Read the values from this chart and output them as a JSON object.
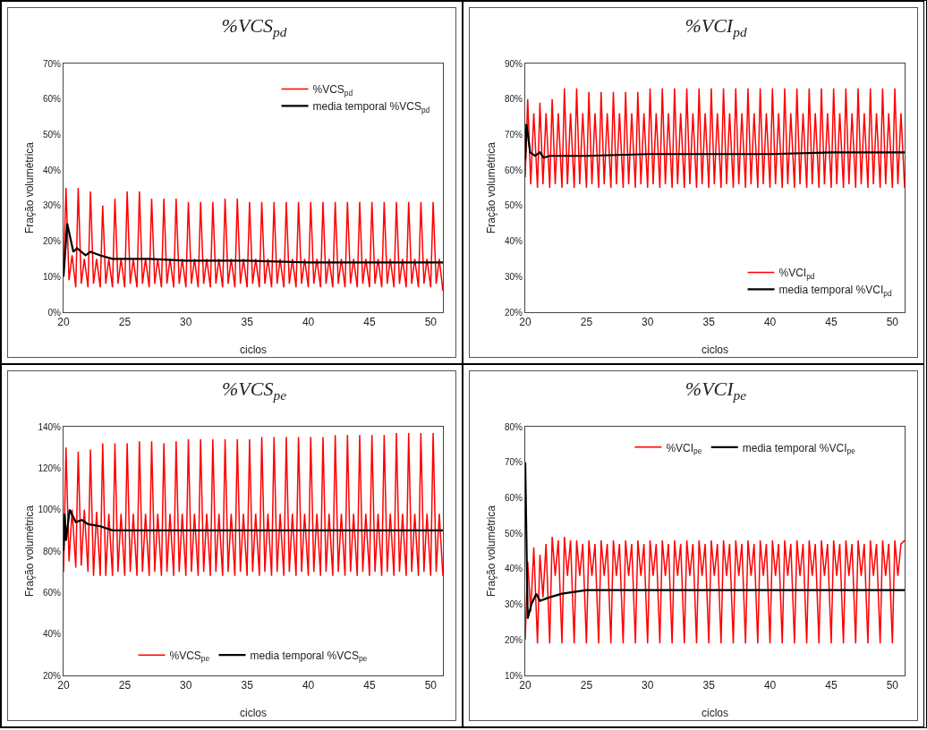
{
  "chart_data": [
    {
      "type": "line",
      "title": "%VCS$_{pd}$",
      "xlabel": "ciclos",
      "ylabel": "Fração volumétrica",
      "legend": "top right",
      "grid": false,
      "xlim": [
        20,
        51
      ],
      "xticks": [
        20,
        25,
        30,
        35,
        40,
        45,
        50
      ],
      "ylim": [
        0,
        70
      ],
      "yticks": [
        {
          "value": 0,
          "label": "0%"
        },
        {
          "value": 10,
          "label": "10%"
        },
        {
          "value": 20,
          "label": "20%"
        },
        {
          "value": 30,
          "label": "30%"
        },
        {
          "value": 40,
          "label": "40%"
        },
        {
          "value": 50,
          "label": "50%"
        },
        {
          "value": 60,
          "label": "60%"
        },
        {
          "value": 70,
          "label": "70%"
        }
      ],
      "series": [
        {
          "name": "%VCS$_{pd}$",
          "color": "#ff0000",
          "x": [
            20,
            20.2,
            20.45,
            20.7,
            21,
            21.2,
            21.45,
            21.7,
            22,
            22.2,
            22.45,
            22.7,
            23,
            23.2,
            23.45,
            23.7,
            24,
            24.2,
            24.45,
            24.7,
            25,
            25.2,
            25.45,
            25.7,
            26,
            26.2,
            26.45,
            26.7,
            27,
            27.2,
            27.45,
            27.7,
            28,
            28.2,
            28.45,
            28.7,
            29,
            29.2,
            29.45,
            29.7,
            30,
            30.2,
            30.45,
            30.7,
            31,
            31.2,
            31.45,
            31.7,
            32,
            32.2,
            32.45,
            32.7,
            33,
            33.2,
            33.45,
            33.7,
            34,
            34.2,
            34.45,
            34.7,
            35,
            35.2,
            35.45,
            35.7,
            36,
            36.2,
            36.45,
            36.7,
            37,
            37.2,
            37.45,
            37.7,
            38,
            38.2,
            38.45,
            38.7,
            39,
            39.2,
            39.45,
            39.7,
            40,
            40.2,
            40.45,
            40.7,
            41,
            41.2,
            41.45,
            41.7,
            42,
            42.2,
            42.45,
            42.7,
            43,
            43.2,
            43.45,
            43.7,
            44,
            44.2,
            44.45,
            44.7,
            45,
            45.2,
            45.45,
            45.7,
            46,
            46.2,
            46.45,
            46.7,
            47,
            47.2,
            47.45,
            47.7,
            48,
            48.2,
            48.45,
            48.7,
            49,
            49.2,
            49.45,
            49.7,
            50,
            50.2,
            50.45,
            50.7,
            51
          ],
          "values": [
            10,
            35,
            9,
            16,
            7,
            35,
            8,
            15,
            7,
            34,
            8,
            15,
            7,
            30,
            8,
            15,
            7,
            32,
            8,
            15,
            7,
            34,
            8,
            15,
            7,
            34,
            8,
            15,
            7,
            32,
            8,
            15,
            7,
            32,
            8,
            15,
            7,
            32,
            8,
            15,
            7,
            31,
            8,
            15,
            7,
            31,
            8,
            15,
            7,
            31,
            8,
            15,
            7,
            32,
            8,
            15,
            7,
            32,
            8,
            15,
            7,
            31,
            8,
            15,
            7,
            31,
            8,
            15,
            7,
            31,
            8,
            15,
            7,
            31,
            8,
            15,
            7,
            31,
            8,
            15,
            7,
            31,
            8,
            15,
            7,
            31,
            8,
            15,
            7,
            31,
            8,
            15,
            7,
            31,
            8,
            15,
            7,
            31,
            8,
            15,
            7,
            31,
            8,
            15,
            7,
            31,
            8,
            15,
            7,
            31,
            8,
            15,
            7,
            31,
            8,
            15,
            7,
            31,
            8,
            15,
            7,
            31,
            8,
            15,
            6
          ]
        },
        {
          "name": "media temporal %VCS$_{pd}$",
          "color": "#000000",
          "x": [
            20,
            20.3,
            20.8,
            21.1,
            21.8,
            22.2,
            23,
            24,
            25,
            27,
            30,
            35,
            40,
            45,
            51
          ],
          "values": [
            10,
            25,
            17,
            18,
            16,
            17,
            16,
            15,
            15,
            15,
            14.5,
            14.5,
            14,
            14,
            14
          ]
        }
      ]
    },
    {
      "type": "line",
      "title": "%VCI$_{pd}$",
      "xlabel": "ciclos",
      "ylabel": "Fração volumétrica",
      "legend": "bottom right",
      "grid": false,
      "xlim": [
        20,
        51
      ],
      "xticks": [
        20,
        25,
        30,
        35,
        40,
        45,
        50
      ],
      "ylim": [
        20,
        90
      ],
      "yticks": [
        {
          "value": 20,
          "label": "20%"
        },
        {
          "value": 30,
          "label": "30%"
        },
        {
          "value": 40,
          "label": "40%"
        },
        {
          "value": 50,
          "label": "50%"
        },
        {
          "value": 60,
          "label": "60%"
        },
        {
          "value": 70,
          "label": "70%"
        },
        {
          "value": 80,
          "label": "80%"
        },
        {
          "value": 90,
          "label": "90%"
        }
      ],
      "series": [
        {
          "name": "%VCI$_{pd}$",
          "color": "#ff0000",
          "x": [
            20,
            20.2,
            20.45,
            20.7,
            21,
            21.2,
            21.45,
            21.7,
            22,
            22.2,
            22.45,
            22.7,
            23,
            23.2,
            23.45,
            23.7,
            24,
            24.2,
            24.45,
            24.7,
            25,
            25.2,
            25.45,
            25.7,
            26,
            26.2,
            26.45,
            26.7,
            27,
            27.2,
            27.45,
            27.7,
            28,
            28.2,
            28.45,
            28.7,
            29,
            29.2,
            29.45,
            29.7,
            30,
            30.2,
            30.45,
            30.7,
            31,
            31.2,
            31.45,
            31.7,
            32,
            32.2,
            32.45,
            32.7,
            33,
            33.2,
            33.45,
            33.7,
            34,
            34.2,
            34.45,
            34.7,
            35,
            35.2,
            35.45,
            35.7,
            36,
            36.2,
            36.45,
            36.7,
            37,
            37.2,
            37.45,
            37.7,
            38,
            38.2,
            38.45,
            38.7,
            39,
            39.2,
            39.45,
            39.7,
            40,
            40.2,
            40.45,
            40.7,
            41,
            41.2,
            41.45,
            41.7,
            42,
            42.2,
            42.45,
            42.7,
            43,
            43.2,
            43.45,
            43.7,
            44,
            44.2,
            44.45,
            44.7,
            45,
            45.2,
            45.45,
            45.7,
            46,
            46.2,
            46.45,
            46.7,
            47,
            47.2,
            47.45,
            47.7,
            48,
            48.2,
            48.45,
            48.7,
            49,
            49.2,
            49.45,
            49.7,
            50,
            50.2,
            50.45,
            50.7,
            51
          ],
          "values": [
            58,
            80,
            56,
            76,
            55,
            79,
            56,
            76,
            55,
            80,
            56,
            76,
            55,
            83,
            56,
            76,
            55,
            83,
            56,
            76,
            55,
            82,
            56,
            76,
            55,
            82,
            56,
            76,
            55,
            82,
            56,
            76,
            55,
            82,
            56,
            76,
            55,
            82,
            56,
            76,
            55,
            83,
            56,
            76,
            55,
            83,
            56,
            76,
            55,
            83,
            56,
            76,
            55,
            83,
            56,
            76,
            55,
            83,
            56,
            76,
            55,
            83,
            56,
            76,
            55,
            83,
            56,
            76,
            55,
            83,
            56,
            76,
            55,
            83,
            56,
            76,
            55,
            83,
            56,
            76,
            55,
            83,
            56,
            76,
            55,
            83,
            56,
            76,
            55,
            83,
            56,
            76,
            55,
            83,
            56,
            76,
            55,
            83,
            56,
            76,
            55,
            83,
            56,
            76,
            55,
            83,
            56,
            76,
            55,
            83,
            56,
            76,
            55,
            83,
            56,
            76,
            55,
            83,
            56,
            76,
            55,
            83,
            56,
            76,
            55
          ]
        },
        {
          "name": "media temporal %VCI$_{pd}$",
          "color": "#000000",
          "x": [
            20,
            20.1,
            20.4,
            20.8,
            21.2,
            21.5,
            22,
            25,
            30,
            35,
            40,
            45,
            51
          ],
          "values": [
            63,
            73,
            65,
            64,
            65,
            63.5,
            64,
            64,
            64.5,
            64.5,
            64.5,
            65,
            65
          ]
        }
      ]
    },
    {
      "type": "line",
      "title": "%VCS$_{pe}$",
      "xlabel": "ciclos",
      "ylabel": "Fração volumétrica",
      "legend": "bottom",
      "grid": false,
      "xlim": [
        20,
        51
      ],
      "xticks": [
        20,
        25,
        30,
        35,
        40,
        45,
        50
      ],
      "ylim": [
        20,
        140
      ],
      "yticks": [
        {
          "value": 20,
          "label": "20%"
        },
        {
          "value": 40,
          "label": "40%"
        },
        {
          "value": 60,
          "label": "60%"
        },
        {
          "value": 80,
          "label": "80%"
        },
        {
          "value": 100,
          "label": "100%"
        },
        {
          "value": 120,
          "label": "120%"
        },
        {
          "value": 140,
          "label": "140%"
        }
      ],
      "series": [
        {
          "name": "%VCS$_{pe}$",
          "color": "#ff0000",
          "x": [
            20,
            20.2,
            20.45,
            20.7,
            21,
            21.2,
            21.45,
            21.7,
            22,
            22.2,
            22.45,
            22.7,
            23,
            23.2,
            23.45,
            23.7,
            24,
            24.2,
            24.45,
            24.7,
            25,
            25.2,
            25.45,
            25.7,
            26,
            26.2,
            26.45,
            26.7,
            27,
            27.2,
            27.45,
            27.7,
            28,
            28.2,
            28.45,
            28.7,
            29,
            29.2,
            29.45,
            29.7,
            30,
            30.2,
            30.45,
            30.7,
            31,
            31.2,
            31.45,
            31.7,
            32,
            32.2,
            32.45,
            32.7,
            33,
            33.2,
            33.45,
            33.7,
            34,
            34.2,
            34.45,
            34.7,
            35,
            35.2,
            35.45,
            35.7,
            36,
            36.2,
            36.45,
            36.7,
            37,
            37.2,
            37.45,
            37.7,
            38,
            38.2,
            38.45,
            38.7,
            39,
            39.2,
            39.45,
            39.7,
            40,
            40.2,
            40.45,
            40.7,
            41,
            41.2,
            41.45,
            41.7,
            42,
            42.2,
            42.45,
            42.7,
            43,
            43.2,
            43.45,
            43.7,
            44,
            44.2,
            44.45,
            44.7,
            45,
            45.2,
            45.45,
            45.7,
            46,
            46.2,
            46.45,
            46.7,
            47,
            47.2,
            47.45,
            47.7,
            48,
            48.2,
            48.45,
            48.7,
            49,
            49.2,
            49.45,
            49.7,
            50,
            50.2,
            50.45,
            50.7,
            51
          ],
          "values": [
            70,
            130,
            75,
            100,
            72,
            128,
            73,
            100,
            70,
            129,
            68,
            99,
            68,
            132,
            68,
            98,
            68,
            132,
            70,
            98,
            68,
            132,
            70,
            98,
            68,
            133,
            70,
            98,
            68,
            133,
            70,
            98,
            68,
            132,
            70,
            98,
            68,
            133,
            70,
            98,
            68,
            134,
            70,
            98,
            68,
            134,
            70,
            98,
            68,
            134,
            70,
            98,
            68,
            134,
            70,
            98,
            68,
            134,
            70,
            98,
            68,
            134,
            70,
            98,
            68,
            135,
            70,
            98,
            68,
            135,
            70,
            98,
            68,
            135,
            70,
            98,
            68,
            135,
            70,
            98,
            68,
            135,
            70,
            98,
            68,
            135,
            70,
            98,
            68,
            136,
            70,
            98,
            68,
            136,
            70,
            98,
            68,
            136,
            70,
            98,
            68,
            136,
            70,
            98,
            68,
            136,
            70,
            98,
            68,
            137,
            70,
            98,
            68,
            137,
            70,
            98,
            68,
            137,
            70,
            98,
            68,
            137,
            70,
            98,
            68
          ]
        },
        {
          "name": "media temporal %VCS$_{pe}$",
          "color": "#000000",
          "x": [
            20,
            20.1,
            20.2,
            20.5,
            21,
            21.5,
            22,
            23,
            24,
            25,
            30,
            35,
            40,
            45,
            51
          ],
          "values": [
            80,
            98,
            85,
            100,
            94,
            95,
            93,
            92,
            90,
            90,
            90,
            90,
            90,
            90,
            90
          ]
        }
      ]
    },
    {
      "type": "line",
      "title": "%VCI$_{pe}$",
      "xlabel": "ciclos",
      "ylabel": "Fração volumétrica",
      "legend": "top",
      "grid": false,
      "xlim": [
        20,
        51
      ],
      "xticks": [
        20,
        25,
        30,
        35,
        40,
        45,
        50
      ],
      "ylim": [
        10,
        80
      ],
      "yticks": [
        {
          "value": 10,
          "label": "10%"
        },
        {
          "value": 20,
          "label": "20%"
        },
        {
          "value": 30,
          "label": "30%"
        },
        {
          "value": 40,
          "label": "40%"
        },
        {
          "value": 50,
          "label": "50%"
        },
        {
          "value": 60,
          "label": "60%"
        },
        {
          "value": 70,
          "label": "70%"
        },
        {
          "value": 80,
          "label": "80%"
        }
      ],
      "series": [
        {
          "name": "%VCI$_{pe}$",
          "color": "#ff0000",
          "x": [
            20,
            20.2,
            20.45,
            20.7,
            21,
            21.2,
            21.45,
            21.7,
            22,
            22.2,
            22.45,
            22.7,
            23,
            23.2,
            23.45,
            23.7,
            24,
            24.2,
            24.45,
            24.7,
            25,
            25.2,
            25.45,
            25.7,
            26,
            26.2,
            26.45,
            26.7,
            27,
            27.2,
            27.45,
            27.7,
            28,
            28.2,
            28.45,
            28.7,
            29,
            29.2,
            29.45,
            29.7,
            30,
            30.2,
            30.45,
            30.7,
            31,
            31.2,
            31.45,
            31.7,
            32,
            32.2,
            32.45,
            32.7,
            33,
            33.2,
            33.45,
            33.7,
            34,
            34.2,
            34.45,
            34.7,
            35,
            35.2,
            35.45,
            35.7,
            36,
            36.2,
            36.45,
            36.7,
            37,
            37.2,
            37.45,
            37.7,
            38,
            38.2,
            38.45,
            38.7,
            39,
            39.2,
            39.45,
            39.7,
            40,
            40.2,
            40.45,
            40.7,
            41,
            41.2,
            41.45,
            41.7,
            42,
            42.2,
            42.45,
            42.7,
            43,
            43.2,
            43.45,
            43.7,
            44,
            44.2,
            44.45,
            44.7,
            45,
            45.2,
            45.45,
            45.7,
            46,
            46.2,
            46.45,
            46.7,
            47,
            47.2,
            47.45,
            47.7,
            48,
            48.2,
            48.45,
            48.7,
            49,
            49.2,
            49.45,
            49.7,
            50,
            50.2,
            50.45,
            50.7,
            51
          ],
          "values": [
            20,
            42,
            28,
            46,
            19,
            44,
            32,
            47,
            19,
            49,
            38,
            48,
            19,
            49,
            38,
            48,
            19,
            48,
            38,
            47,
            19,
            48,
            38,
            47,
            19,
            48,
            38,
            47,
            19,
            48,
            38,
            47,
            19,
            48,
            38,
            47,
            19,
            48,
            38,
            47,
            19,
            48,
            38,
            47,
            19,
            48,
            38,
            47,
            19,
            48,
            38,
            47,
            19,
            48,
            38,
            47,
            19,
            48,
            38,
            47,
            19,
            48,
            38,
            47,
            19,
            48,
            38,
            47,
            19,
            48,
            38,
            47,
            19,
            48,
            38,
            47,
            19,
            48,
            38,
            47,
            19,
            48,
            38,
            47,
            19,
            48,
            38,
            47,
            19,
            48,
            38,
            47,
            19,
            48,
            38,
            47,
            19,
            48,
            38,
            47,
            19,
            48,
            38,
            47,
            19,
            48,
            38,
            47,
            19,
            48,
            38,
            47,
            19,
            48,
            38,
            47,
            19,
            48,
            38,
            47,
            19,
            48,
            38,
            47,
            48
          ]
        },
        {
          "name": "media temporal %VCI$_{pe}$",
          "color": "#000000",
          "x": [
            20,
            20.2,
            20.5,
            20.9,
            21.2,
            22,
            23,
            24,
            25,
            30,
            35,
            40,
            45,
            51
          ],
          "values": [
            70,
            26,
            30,
            33,
            31,
            32,
            33,
            33.5,
            34,
            34,
            34,
            34,
            34,
            34
          ]
        }
      ]
    }
  ]
}
